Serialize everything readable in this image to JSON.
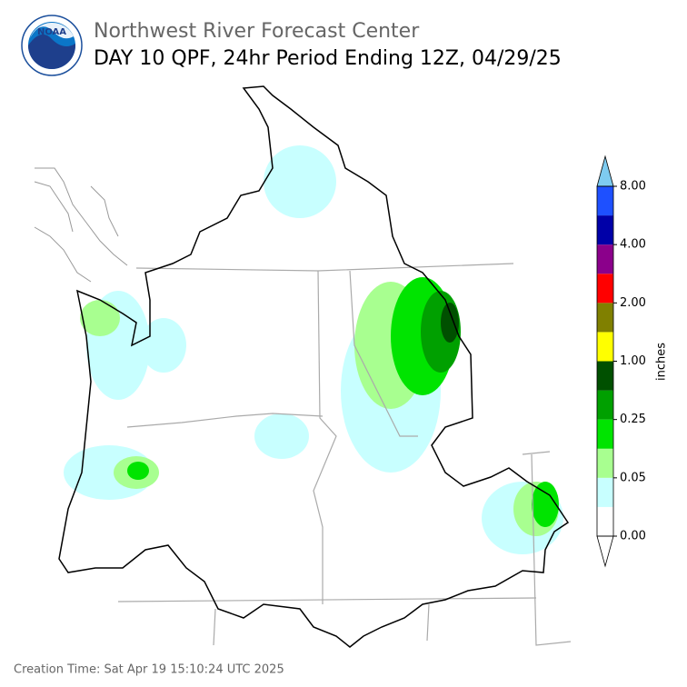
{
  "header": {
    "logo": "NOAA",
    "agency": "Northwest River Forecast Center",
    "title": "DAY 10 QPF, 24hr Period Ending 12Z, 04/29/25"
  },
  "colorbar": {
    "label": "inches",
    "ticks": [
      "0.00",
      "0.05",
      "0.25",
      "1.00",
      "2.00",
      "4.00",
      "8.00"
    ],
    "colors": [
      "#ffffff",
      "#c8ffff",
      "#a8ff90",
      "#00e400",
      "#00a000",
      "#005000",
      "#ffff00",
      "#808000",
      "#ff0000",
      "#8b008b",
      "#0000a8",
      "#1e50ff"
    ],
    "over_color": "#7ecbf0",
    "under_color": "#ffffff"
  },
  "footer": "Creation Time: Sat Apr 19 15:10:24 UTC 2025"
}
